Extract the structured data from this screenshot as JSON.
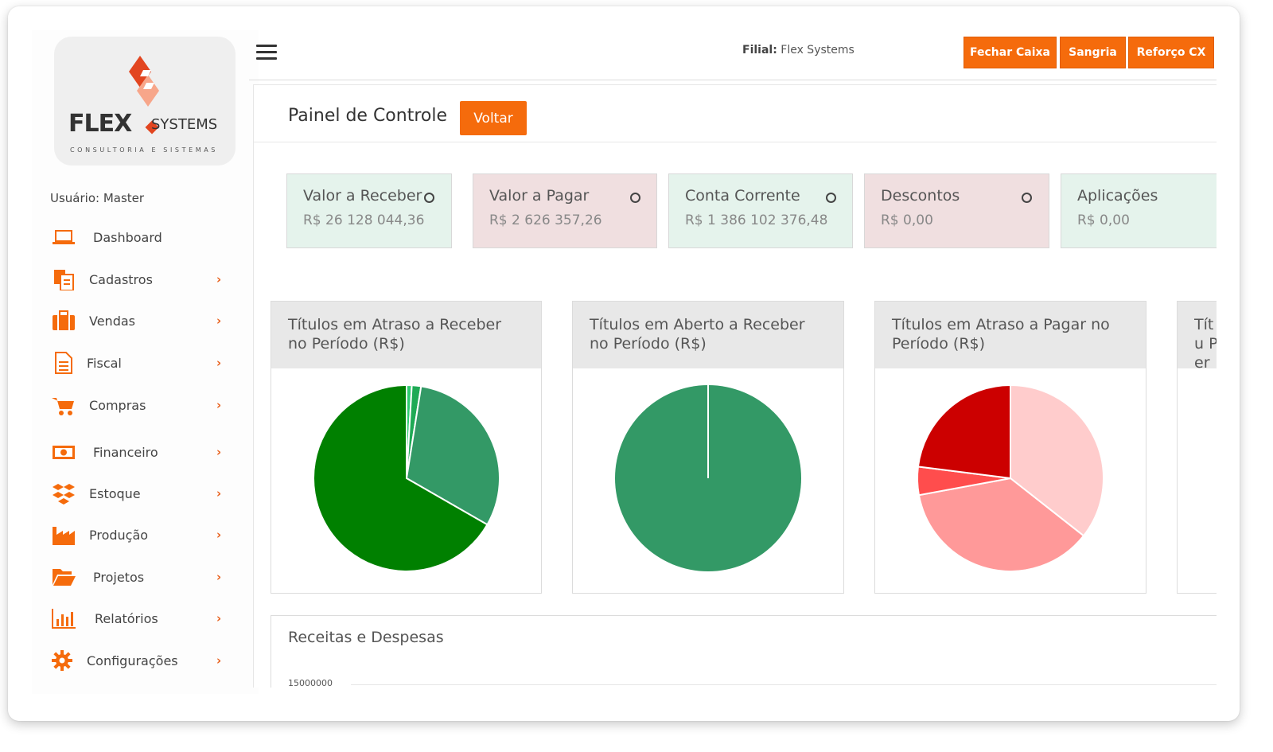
{
  "brand": {
    "logo_word": "FLEX",
    "logo_systems": "SYSTEMS",
    "logo_tagline": "CONSULTORIA E SISTEMAS",
    "accent": "#f56b0c",
    "logo_red": "#e2451f"
  },
  "sidebar": {
    "user_prefix": "Usuário:",
    "user_name": "Master",
    "items": [
      {
        "label": "Dashboard",
        "icon": "laptop-icon",
        "has_submenu": false
      },
      {
        "label": "Cadastros",
        "icon": "documents-icon",
        "has_submenu": true
      },
      {
        "label": "Vendas",
        "icon": "briefcase-icon",
        "has_submenu": true
      },
      {
        "label": "Fiscal",
        "icon": "file-text-icon",
        "has_submenu": true
      },
      {
        "label": "Compras",
        "icon": "cart-icon",
        "has_submenu": true
      },
      {
        "label": "Financeiro",
        "icon": "money-icon",
        "has_submenu": true
      },
      {
        "label": "Estoque",
        "icon": "boxes-icon",
        "has_submenu": true
      },
      {
        "label": "Produção",
        "icon": "factory-icon",
        "has_submenu": true
      },
      {
        "label": "Projetos",
        "icon": "folder-open-icon",
        "has_submenu": true
      },
      {
        "label": "Relatórios",
        "icon": "bar-chart-icon",
        "has_submenu": true
      },
      {
        "label": "Configurações",
        "icon": "gear-icon",
        "has_submenu": true
      }
    ],
    "chevron": "›"
  },
  "header": {
    "filial_label": "Filial:",
    "filial_value": "Flex Systems",
    "buttons": [
      "Fechar Caixa",
      "Sangria",
      "Reforço CX"
    ]
  },
  "page": {
    "title": "Painel de Controle",
    "back_button": "Voltar"
  },
  "stats": [
    {
      "title": "Valor a Receber",
      "value": "R$ 26 128 044,36",
      "tone": "green"
    },
    {
      "title": "Valor a Pagar",
      "value": "R$ 2 626 357,26",
      "tone": "red"
    },
    {
      "title": "Conta Corrente",
      "value": "R$ 1 386 102 376,48",
      "tone": "green"
    },
    {
      "title": "Descontos",
      "value": "R$ 0,00",
      "tone": "red"
    },
    {
      "title": "Aplicações",
      "value": "R$ 0,00",
      "tone": "green"
    }
  ],
  "chart_data": [
    {
      "type": "pie",
      "title": "Títulos em Atraso a Receber no Período (R$)",
      "values": [
        0.9,
        1.6,
        30.8,
        66.7
      ],
      "colors": [
        "#2ecc71",
        "#1faa55",
        "#339966",
        "#008000"
      ]
    },
    {
      "type": "pie",
      "title": "Títulos em Aberto a Receber no Período (R$)",
      "values": [
        100
      ],
      "colors": [
        "#339966"
      ]
    },
    {
      "type": "pie",
      "title": "Títulos em Atraso a Pagar no Período (R$)",
      "values": [
        35.6,
        36.5,
        4.9,
        23.0
      ],
      "colors": [
        "#ffcccc",
        "#ff9999",
        "#ff4d4d",
        "#cc0000"
      ]
    },
    {
      "type": "bar",
      "title": "Receitas e Despesas",
      "y_ticks": [
        "15000000"
      ]
    }
  ],
  "fourth_chart_title_partial": "Títu Per"
}
